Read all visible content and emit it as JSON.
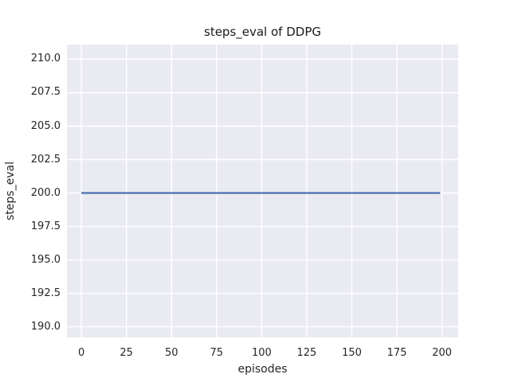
{
  "chart_data": {
    "type": "line",
    "title": "steps_eval of DDPG",
    "xlabel": "episodes",
    "ylabel": "steps_eval",
    "xlim": [
      -8,
      209
    ],
    "ylim": [
      189.2,
      211.1
    ],
    "grid": true,
    "legend_visible": false,
    "plot_background": "#eaeaf2",
    "grid_color": "#ffffff",
    "xticks": [
      {
        "value": 0,
        "label": "0"
      },
      {
        "value": 25,
        "label": "25"
      },
      {
        "value": 50,
        "label": "50"
      },
      {
        "value": 75,
        "label": "75"
      },
      {
        "value": 100,
        "label": "100"
      },
      {
        "value": 125,
        "label": "125"
      },
      {
        "value": 150,
        "label": "150"
      },
      {
        "value": 175,
        "label": "175"
      },
      {
        "value": 200,
        "label": "200"
      }
    ],
    "yticks": [
      {
        "value": 190.0,
        "label": "190.0"
      },
      {
        "value": 192.5,
        "label": "192.5"
      },
      {
        "value": 195.0,
        "label": "195.0"
      },
      {
        "value": 197.5,
        "label": "197.5"
      },
      {
        "value": 200.0,
        "label": "200.0"
      },
      {
        "value": 202.5,
        "label": "202.5"
      },
      {
        "value": 205.0,
        "label": "205.0"
      },
      {
        "value": 207.5,
        "label": "207.5"
      },
      {
        "value": 210.0,
        "label": "210.0"
      }
    ],
    "series": [
      {
        "name": "DDPG",
        "color": "#4c72b0",
        "line_width": 2.2,
        "x": [
          0,
          199
        ],
        "y": [
          200,
          200
        ],
        "note": "constant value 200 for every episode 0-199"
      }
    ]
  }
}
